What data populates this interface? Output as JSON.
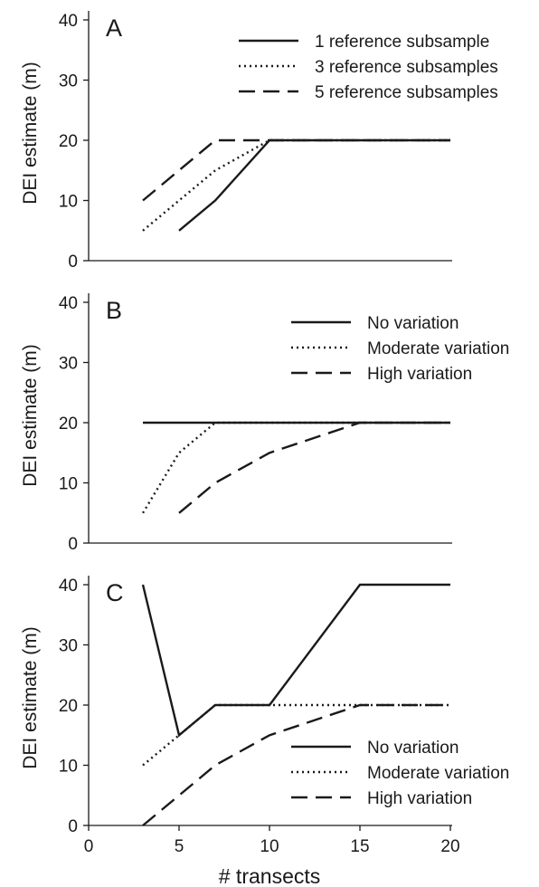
{
  "chart_data": [
    {
      "type": "line",
      "panel_label": "A",
      "xlabel": "",
      "ylabel": "DEI estimate (m)",
      "xlim": [
        0,
        20
      ],
      "ylim": [
        0,
        40
      ],
      "x_ticks": [],
      "y_ticks": [
        "0",
        "10",
        "20",
        "30",
        "40"
      ],
      "legend_position": "top-right",
      "series": [
        {
          "name": "1 reference subsample",
          "style": "solid",
          "x": [
            5,
            7,
            10,
            20
          ],
          "y": [
            5,
            10,
            20,
            20
          ]
        },
        {
          "name": "3 reference subsamples",
          "style": "dotted",
          "x": [
            3,
            5,
            7,
            10,
            20
          ],
          "y": [
            5,
            10,
            15,
            20,
            20
          ]
        },
        {
          "name": "5 reference subsamples",
          "style": "dashed",
          "x": [
            3,
            7,
            20
          ],
          "y": [
            10,
            20,
            20
          ]
        }
      ]
    },
    {
      "type": "line",
      "panel_label": "B",
      "xlabel": "",
      "ylabel": "DEI estimate (m)",
      "xlim": [
        0,
        20
      ],
      "ylim": [
        0,
        40
      ],
      "x_ticks": [],
      "y_ticks": [
        "0",
        "10",
        "20",
        "30",
        "40"
      ],
      "legend_position": "top-right",
      "series": [
        {
          "name": "No variation",
          "style": "solid",
          "x": [
            3,
            20
          ],
          "y": [
            20,
            20
          ]
        },
        {
          "name": "Moderate variation",
          "style": "dotted",
          "x": [
            3,
            5,
            7,
            20
          ],
          "y": [
            5,
            15,
            20,
            20
          ]
        },
        {
          "name": "High variation",
          "style": "dashed",
          "x": [
            5,
            7,
            10,
            15,
            20
          ],
          "y": [
            5,
            10,
            15,
            20,
            20
          ]
        }
      ]
    },
    {
      "type": "line",
      "panel_label": "C",
      "xlabel": "# transects",
      "ylabel": "DEI estimate (m)",
      "xlim": [
        0,
        20
      ],
      "ylim": [
        0,
        40
      ],
      "x_ticks": [
        "0",
        "5",
        "10",
        "15",
        "20"
      ],
      "y_ticks": [
        "0",
        "10",
        "20",
        "30",
        "40"
      ],
      "legend_position": "bottom-right",
      "series": [
        {
          "name": "No variation",
          "style": "solid",
          "x": [
            3,
            5,
            7,
            10,
            15,
            20
          ],
          "y": [
            40,
            15,
            20,
            20,
            40,
            40
          ]
        },
        {
          "name": "Moderate variation",
          "style": "dotted",
          "x": [
            3,
            5,
            7,
            20
          ],
          "y": [
            10,
            15,
            20,
            20
          ]
        },
        {
          "name": "High variation",
          "style": "dashed",
          "x": [
            3,
            5,
            7,
            10,
            15,
            20
          ],
          "y": [
            0,
            5,
            10,
            15,
            20,
            20
          ]
        }
      ]
    }
  ]
}
